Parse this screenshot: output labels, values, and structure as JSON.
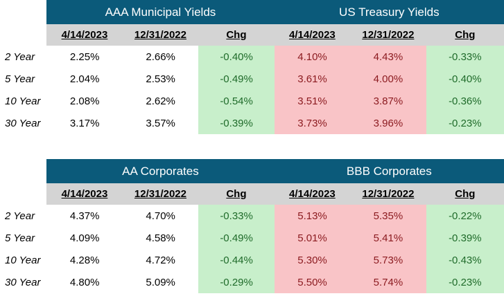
{
  "tables": [
    {
      "groups": [
        "AAA Municipal Yields",
        "US Treasury Yields"
      ],
      "headers": [
        "4/14/2023",
        "12/31/2022",
        "Chg",
        "4/14/2023",
        "12/31/2022",
        "Chg"
      ],
      "rows": [
        {
          "label": "2 Year",
          "cells": [
            "2.25%",
            "2.66%",
            "-0.40%",
            "4.10%",
            "4.43%",
            "-0.33%"
          ]
        },
        {
          "label": "5 Year",
          "cells": [
            "2.04%",
            "2.53%",
            "-0.49%",
            "3.61%",
            "4.00%",
            "-0.40%"
          ]
        },
        {
          "label": "10 Year",
          "cells": [
            "2.08%",
            "2.62%",
            "-0.54%",
            "3.51%",
            "3.87%",
            "-0.36%"
          ]
        },
        {
          "label": "30 Year",
          "cells": [
            "3.17%",
            "3.57%",
            "-0.39%",
            "3.73%",
            "3.96%",
            "-0.23%"
          ]
        }
      ]
    },
    {
      "groups": [
        "AA Corporates",
        "BBB Corporates"
      ],
      "headers": [
        "4/14/2023",
        "12/31/2022",
        "Chg",
        "4/14/2023",
        "12/31/2022",
        "Chg"
      ],
      "rows": [
        {
          "label": "2 Year",
          "cells": [
            "4.37%",
            "4.70%",
            "-0.33%",
            "5.13%",
            "5.35%",
            "-0.22%"
          ]
        },
        {
          "label": "5 Year",
          "cells": [
            "4.09%",
            "4.58%",
            "-0.49%",
            "5.01%",
            "5.41%",
            "-0.39%"
          ]
        },
        {
          "label": "10 Year",
          "cells": [
            "4.28%",
            "4.72%",
            "-0.44%",
            "5.30%",
            "5.73%",
            "-0.43%"
          ]
        },
        {
          "label": "30 Year",
          "cells": [
            "4.80%",
            "5.09%",
            "-0.29%",
            "5.50%",
            "5.74%",
            "-0.23%"
          ]
        }
      ]
    }
  ],
  "colors": {
    "header_band": "#0b5a7a",
    "header_row": "#d4d4d4",
    "change_fill": "#c8efcb",
    "treasury_fill": "#f9c4c7"
  }
}
